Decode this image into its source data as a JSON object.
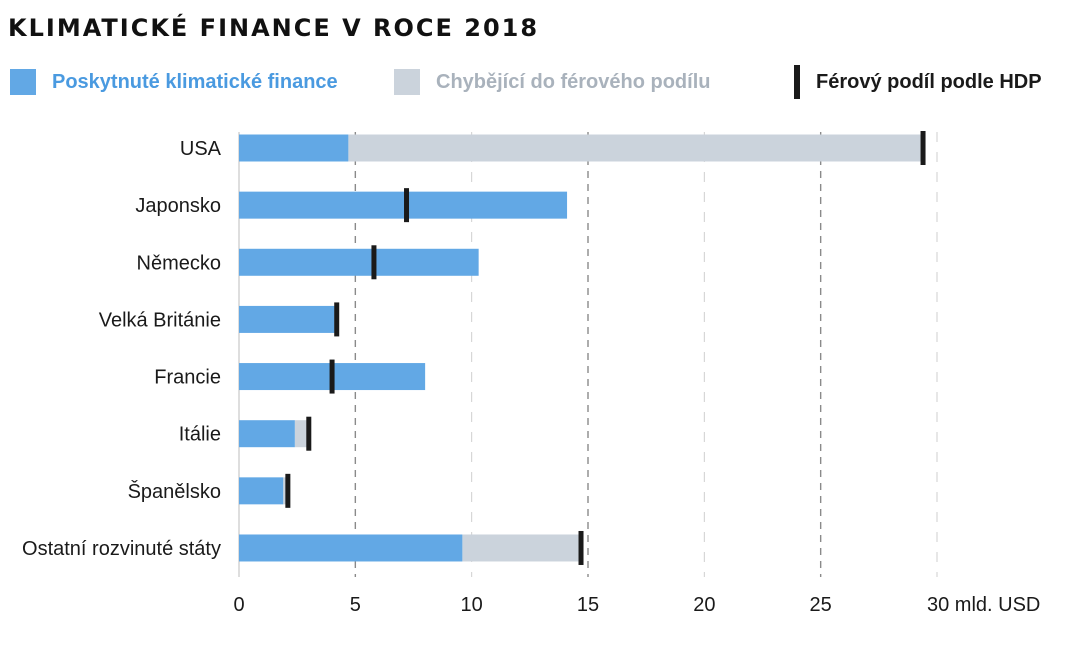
{
  "chart_data": {
    "type": "bar",
    "title": "KLIMATICKÉ FINANCE V ROCE 2018",
    "legend": [
      {
        "key": "provided",
        "label": "Poskytnuté klimatické finance",
        "color": "#62a8e5"
      },
      {
        "key": "missing",
        "label": "Chybějící do férového podílu",
        "color": "#cbd3dc"
      },
      {
        "key": "fair",
        "label": "Férový podíl podle HDP",
        "color": "#1a1a1a"
      }
    ],
    "categories": [
      "USA",
      "Japonsko",
      "Německo",
      "Velká Británie",
      "Francie",
      "Itálie",
      "Španělsko",
      "Ostatní rozvinuté státy"
    ],
    "series": [
      {
        "name": "Poskytnuté klimatické finance",
        "values": [
          4.7,
          14.1,
          10.3,
          4.1,
          8.0,
          2.4,
          1.9,
          9.6
        ]
      },
      {
        "name": "Férový podíl podle HDP",
        "values": [
          29.4,
          7.2,
          5.8,
          4.2,
          4.0,
          3.0,
          2.1,
          14.7
        ]
      }
    ],
    "xlim": [
      0,
      30
    ],
    "xticks": [
      0,
      5,
      10,
      15,
      20,
      25,
      30
    ],
    "xtick_labels": [
      "0",
      "5",
      "10",
      "15",
      "20",
      "25",
      "30 mld. USD"
    ],
    "grid": true,
    "orientation": "horizontal"
  }
}
